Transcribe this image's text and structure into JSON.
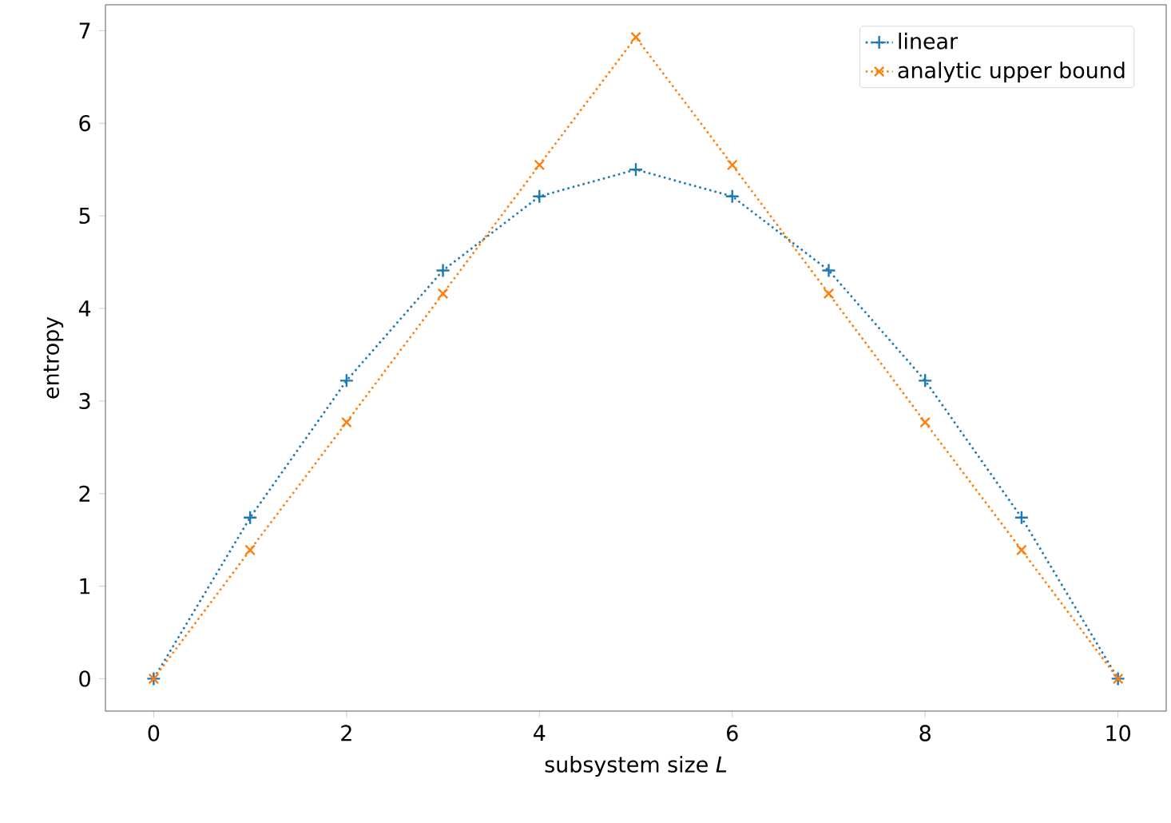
{
  "chart_data": {
    "type": "line",
    "xlabel": "subsystem size *L*",
    "ylabel": "entropy",
    "x": [
      0,
      1,
      2,
      3,
      4,
      5,
      6,
      7,
      8,
      9,
      10
    ],
    "series": [
      {
        "name": "linear",
        "color": "#1f77b4",
        "marker": "plus",
        "values": [
          0,
          1.74,
          3.22,
          4.41,
          5.21,
          5.5,
          5.21,
          4.41,
          3.22,
          1.74,
          0
        ]
      },
      {
        "name": "analytic upper bound",
        "color": "#ff7f0e",
        "marker": "cross",
        "values": [
          0,
          1.39,
          2.77,
          4.16,
          5.55,
          6.93,
          5.55,
          4.16,
          2.77,
          1.39,
          0
        ]
      }
    ],
    "line_style": "dotted",
    "xlim": [
      -0.5,
      10.5
    ],
    "ylim": [
      -0.35,
      7.28
    ],
    "xticks": [
      0,
      2,
      4,
      6,
      8,
      10
    ],
    "yticks": [
      0,
      1,
      2,
      3,
      4,
      5,
      6,
      7
    ],
    "grid": false,
    "legend": "top right"
  }
}
